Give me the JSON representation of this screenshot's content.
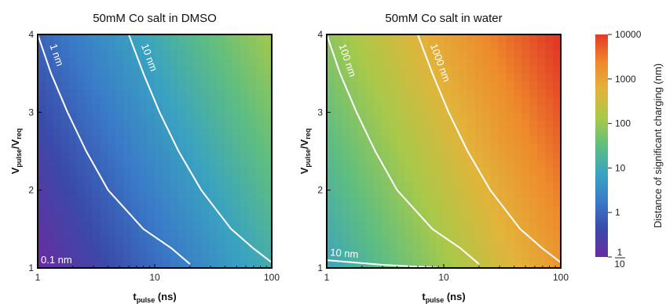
{
  "chart_data": [
    {
      "type": "heatmap",
      "title": "50mM Co salt in DMSO",
      "xlabel": {
        "main": "t",
        "sub": "pulse",
        "unit": " (ns)"
      },
      "ylabel": {
        "main": "V",
        "sub": "pulse",
        "sep": "/",
        "main2": "V",
        "sub2": "req"
      },
      "x_scale": "log",
      "xlim": [
        1,
        100
      ],
      "ylim": [
        1,
        4
      ],
      "x_ticks": [
        {
          "value": 1,
          "label": "1"
        },
        {
          "value": 10,
          "label": "10"
        },
        {
          "value": 100,
          "label": "100"
        }
      ],
      "y_ticks": [
        {
          "value": 1,
          "label": "1"
        },
        {
          "value": 2,
          "label": "2"
        },
        {
          "value": 3,
          "label": "3"
        },
        {
          "value": 4,
          "label": "4"
        }
      ],
      "z_description": "Distance of significant charging (nm), log color scale",
      "z_corners_nm": {
        "t1_v1": 0.1,
        "t100_v1": 12,
        "t1_v4": 0.9,
        "t100_v4": 120
      },
      "contours": [
        {
          "value_nm": 0.1,
          "label": "0.1 nm",
          "points": [
            [
              1,
              1.0
            ],
            [
              10,
              1.0
            ],
            [
              28,
              1.0
            ]
          ]
        },
        {
          "value_nm": 1,
          "label": "1 nm",
          "points": [
            [
              1,
              4.0
            ],
            [
              1.3,
              3.5
            ],
            [
              1.8,
              3.0
            ],
            [
              2.6,
              2.5
            ],
            [
              4,
              2.0
            ],
            [
              8,
              1.5
            ],
            [
              14,
              1.25
            ],
            [
              20,
              1.05
            ]
          ]
        },
        {
          "value_nm": 10,
          "label": "10 nm",
          "points": [
            [
              6,
              4.0
            ],
            [
              8,
              3.5
            ],
            [
              11,
              3.0
            ],
            [
              16,
              2.5
            ],
            [
              25,
              2.0
            ],
            [
              45,
              1.5
            ],
            [
              70,
              1.25
            ],
            [
              100,
              1.07
            ]
          ]
        }
      ]
    },
    {
      "type": "heatmap",
      "title": "50mM Co salt in water",
      "xlabel": {
        "main": "t",
        "sub": "pulse",
        "unit": " (ns)"
      },
      "ylabel": {
        "main": "V",
        "sub": "pulse",
        "sep": "/",
        "main2": "V",
        "sub2": "req"
      },
      "x_scale": "log",
      "xlim": [
        1,
        100
      ],
      "ylim": [
        1,
        4
      ],
      "x_ticks": [
        {
          "value": 1,
          "label": "1"
        },
        {
          "value": 10,
          "label": "10"
        },
        {
          "value": 100,
          "label": "100"
        }
      ],
      "y_ticks": [
        {
          "value": 1,
          "label": "1"
        },
        {
          "value": 2,
          "label": "2"
        },
        {
          "value": 3,
          "label": "3"
        },
        {
          "value": 4,
          "label": "4"
        }
      ],
      "z_description": "Distance of significant charging (nm), log color scale",
      "z_corners_nm": {
        "t1_v1": 8,
        "t100_v1": 1500,
        "t1_v4": 80,
        "t100_v4": 12000
      },
      "contours": [
        {
          "value_nm": 10,
          "label": "10 nm",
          "points": [
            [
              1,
              1.1
            ],
            [
              3,
              1.04
            ],
            [
              10,
              1.0
            ]
          ]
        },
        {
          "value_nm": 100,
          "label": "100 nm",
          "points": [
            [
              1,
              4.0
            ],
            [
              1.3,
              3.5
            ],
            [
              1.8,
              3.0
            ],
            [
              2.6,
              2.5
            ],
            [
              4,
              2.0
            ],
            [
              8,
              1.5
            ],
            [
              14,
              1.25
            ],
            [
              20,
              1.05
            ]
          ]
        },
        {
          "value_nm": 1000,
          "label": "1000 nm",
          "points": [
            [
              6,
              4.0
            ],
            [
              8,
              3.5
            ],
            [
              11,
              3.0
            ],
            [
              16,
              2.5
            ],
            [
              25,
              2.0
            ],
            [
              45,
              1.5
            ],
            [
              70,
              1.25
            ],
            [
              100,
              1.07
            ]
          ]
        }
      ]
    }
  ],
  "colorbar": {
    "label": "Distance of significant charging (nm)",
    "scale": "log",
    "range_nm": [
      0.1,
      10000
    ],
    "ticks": [
      {
        "value": 10000,
        "label": "10000"
      },
      {
        "value": 1000,
        "label": "1000"
      },
      {
        "value": 100,
        "label": "100"
      },
      {
        "value": 10,
        "label": "10"
      },
      {
        "value": 1,
        "label": "1"
      },
      {
        "value": 0.1,
        "numerator": "1",
        "denominator": "10"
      }
    ],
    "colors": [
      "#6a2ca0",
      "#3a4aa8",
      "#3a7bc8",
      "#3aa3c0",
      "#5fbe80",
      "#a8c94a",
      "#e2b43a",
      "#ee8a2c",
      "#e23a26"
    ]
  }
}
